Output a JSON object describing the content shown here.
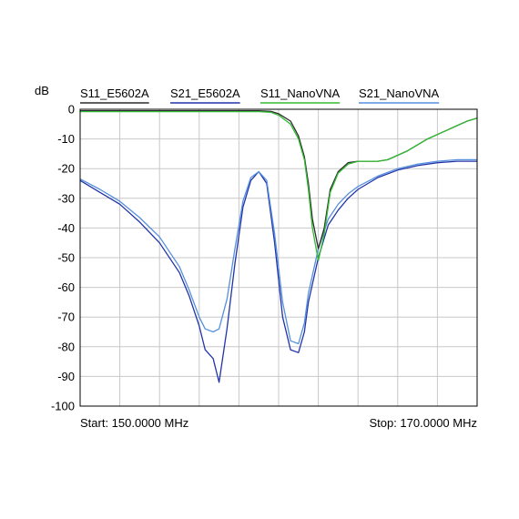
{
  "chart_data": {
    "type": "line",
    "ylabel": "dB",
    "ylim": [
      -100,
      0
    ],
    "y_ticks": [
      "0",
      "-10",
      "-20",
      "-30",
      "-40",
      "-50",
      "-60",
      "-70",
      "-80",
      "-90",
      "-100"
    ],
    "x_unit": "MHz",
    "xlim": [
      150,
      170
    ],
    "grid": true,
    "legend_position": "top",
    "start_label": "Start: 150.0000 MHz",
    "stop_label": "Stop: 170.0000 MHz",
    "series": [
      {
        "name": "S11_E5602A",
        "color": "#2b2b2b",
        "x": [
          150,
          152,
          154,
          156,
          157,
          158,
          159,
          159.6,
          160,
          160.6,
          161,
          161.3,
          161.5,
          161.7,
          162,
          162.3,
          162.6,
          163,
          163.5,
          164,
          164.5,
          165,
          165.5,
          166,
          166.5,
          167,
          167.5,
          168,
          168.5,
          169,
          169.5,
          170
        ],
        "y": [
          -0.5,
          -0.5,
          -0.5,
          -0.5,
          -0.5,
          -0.5,
          -0.5,
          -0.7,
          -1.5,
          -4,
          -9,
          -16,
          -25,
          -37,
          -47,
          -40,
          -27,
          -21,
          -18,
          -17.5,
          -17.5,
          -17.5,
          -17,
          -15.5,
          -14,
          -12,
          -10,
          -8.5,
          -7,
          -5.5,
          -4,
          -3
        ]
      },
      {
        "name": "S21_E5602A",
        "color": "#2233aa",
        "x": [
          150,
          151,
          152,
          153,
          154,
          155,
          155.5,
          156,
          156.3,
          156.7,
          157,
          157.4,
          157.8,
          158.2,
          158.6,
          159,
          159.4,
          159.8,
          160.2,
          160.6,
          161,
          161.3,
          161.5,
          162,
          162.5,
          163,
          163.5,
          164,
          165,
          166,
          167,
          168,
          169,
          170
        ],
        "y": [
          -24,
          -28,
          -32,
          -38,
          -45,
          -55,
          -63,
          -73,
          -81,
          -84,
          -92,
          -74,
          -52,
          -33,
          -24,
          -21,
          -25,
          -45,
          -70,
          -81,
          -82,
          -75,
          -65,
          -50,
          -39,
          -34,
          -30,
          -27,
          -23,
          -20.5,
          -19,
          -18,
          -17.5,
          -17.5
        ]
      },
      {
        "name": "S11_NanoVNA",
        "color": "#33bb33",
        "x": [
          150,
          152,
          154,
          156,
          157,
          158,
          159,
          159.6,
          160,
          160.6,
          161,
          161.3,
          161.5,
          161.7,
          162,
          162.3,
          162.6,
          163,
          163.5,
          164,
          164.5,
          165,
          165.5,
          166,
          166.5,
          167,
          167.5,
          168,
          168.5,
          169,
          169.5,
          170
        ],
        "y": [
          -0.8,
          -0.8,
          -0.8,
          -0.8,
          -0.8,
          -0.8,
          -0.8,
          -1,
          -2,
          -5,
          -10,
          -17,
          -27,
          -40,
          -51,
          -42,
          -28,
          -21.5,
          -18.5,
          -17.5,
          -17.5,
          -17.5,
          -17,
          -15.5,
          -14,
          -12,
          -10,
          -8.5,
          -7,
          -5.5,
          -4,
          -3
        ]
      },
      {
        "name": "S21_NanoVNA",
        "color": "#5590dd",
        "x": [
          150,
          151,
          152,
          153,
          154,
          155,
          155.5,
          156,
          156.3,
          156.7,
          157,
          157.4,
          157.8,
          158.2,
          158.6,
          159,
          159.4,
          159.8,
          160.2,
          160.6,
          161,
          161.3,
          161.5,
          162,
          162.5,
          163,
          163.5,
          164,
          165,
          166,
          167,
          168,
          169,
          170
        ],
        "y": [
          -23.5,
          -27,
          -31,
          -36.5,
          -43,
          -53,
          -61,
          -70,
          -74,
          -75,
          -74,
          -64,
          -47,
          -31,
          -23,
          -21,
          -24,
          -42,
          -65,
          -78,
          -79,
          -72,
          -62,
          -47,
          -37,
          -32,
          -28.5,
          -26,
          -22.5,
          -20,
          -18.5,
          -17.5,
          -17,
          -17
        ]
      }
    ]
  }
}
